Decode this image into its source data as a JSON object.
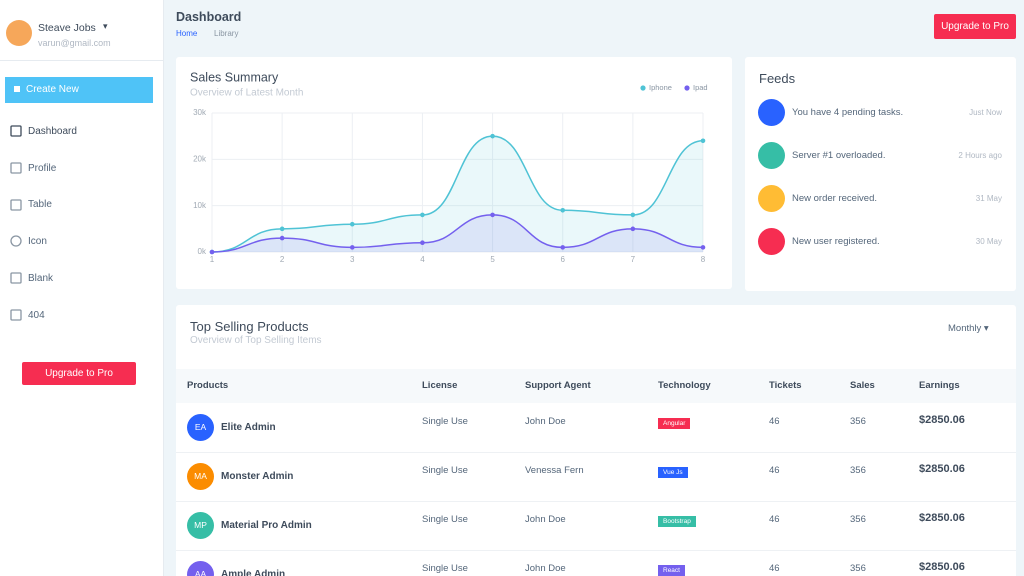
{
  "sidebar": {
    "user": {
      "name": "Steave Jobs",
      "email": "varun@gmail.com"
    },
    "create_button": "Create New",
    "nav": [
      "Dashboard",
      "Profile",
      "Table",
      "Icon",
      "Blank",
      "404"
    ],
    "upgrade_button": "Upgrade to Pro"
  },
  "header": {
    "title": "Dashboard",
    "breadcrumbs": [
      "Home",
      "Library"
    ],
    "upgrade_button": "Upgrade to Pro"
  },
  "sales_summary": {
    "title": "Sales Summary",
    "subtitle": "Overview of Latest Month",
    "chart_data": {
      "type": "line",
      "x": [
        1,
        2,
        3,
        4,
        5,
        6,
        7,
        8
      ],
      "series": [
        {
          "name": "Iphone",
          "color": "#4fc3d5",
          "values": [
            0,
            5000,
            6000,
            8000,
            25000,
            9000,
            8000,
            24000
          ]
        },
        {
          "name": "Ipad",
          "color": "#7460ee",
          "values": [
            0,
            3000,
            1000,
            2000,
            8000,
            1000,
            5000,
            1000
          ]
        }
      ],
      "xlim": [
        1,
        8
      ],
      "ylim": [
        0,
        30000
      ],
      "xticks": [
        1,
        2,
        3,
        4,
        5,
        6,
        7,
        8
      ],
      "yticks": [
        {
          "value": 0,
          "label": "0k"
        },
        {
          "value": 10000,
          "label": "10k"
        },
        {
          "value": 20000,
          "label": "20k"
        },
        {
          "value": 30000,
          "label": "30k"
        }
      ],
      "grid": true
    }
  },
  "feeds": {
    "title": "Feeds",
    "items": [
      {
        "text": "You have 4 pending tasks.",
        "time": "Just Now",
        "color": "#2962ff"
      },
      {
        "text": "Server #1 overloaded.",
        "time": "2 Hours ago",
        "color": "#36bea6"
      },
      {
        "text": "New order received.",
        "time": "31 May",
        "color": "#ffbc34"
      },
      {
        "text": "New user registered.",
        "time": "30 May",
        "color": "#f62d51"
      }
    ]
  },
  "top_selling": {
    "title": "Top Selling Products",
    "subtitle": "Overview of Top Selling Items",
    "period": "Monthly",
    "columns": [
      "Products",
      "License",
      "Support Agent",
      "Technology",
      "Tickets",
      "Sales",
      "Earnings"
    ],
    "rows": [
      {
        "initials": "EA",
        "product": "Elite Admin",
        "license": "Single Use",
        "agent": "John Doe",
        "technology": "Angular",
        "tickets": 46,
        "sales": 356,
        "earnings": "$2850.06",
        "avatar_color": "#2962ff",
        "badge_color": "#f62d51"
      },
      {
        "initials": "MA",
        "product": "Monster Admin",
        "license": "Single Use",
        "agent": "Venessa Fern",
        "technology": "Vue Js",
        "tickets": 46,
        "sales": 356,
        "earnings": "$2850.06",
        "avatar_color": "#fb8c00",
        "badge_color": "#2962ff"
      },
      {
        "initials": "MP",
        "product": "Material Pro Admin",
        "license": "Single Use",
        "agent": "John Doe",
        "technology": "Bootstrap",
        "tickets": 46,
        "sales": 356,
        "earnings": "$2850.06",
        "avatar_color": "#36bea6",
        "badge_color": "#36bea6"
      },
      {
        "initials": "AA",
        "product": "Ample Admin",
        "license": "Single Use",
        "agent": "John Doe",
        "technology": "React",
        "tickets": 46,
        "sales": 356,
        "earnings": "$2850.06",
        "avatar_color": "#7460ee",
        "badge_color": "#7460ee"
      }
    ]
  }
}
